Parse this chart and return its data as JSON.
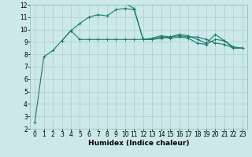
{
  "x": [
    0,
    1,
    2,
    3,
    4,
    5,
    6,
    7,
    8,
    9,
    10,
    11,
    12,
    13,
    14,
    15,
    16,
    17,
    18,
    19,
    20,
    21,
    22,
    23
  ],
  "line1": [
    2.5,
    7.8,
    8.3,
    9.1,
    9.9,
    9.2,
    9.2,
    9.2,
    9.2,
    9.2,
    9.2,
    9.2,
    9.2,
    9.2,
    9.4,
    9.3,
    9.4,
    9.3,
    8.9,
    8.8,
    9.2,
    9.1,
    8.6,
    8.5
  ],
  "line2": [
    null,
    null,
    null,
    9.1,
    9.9,
    10.5,
    11.0,
    11.2,
    11.1,
    11.6,
    11.7,
    11.6,
    9.2,
    9.3,
    9.5,
    9.4,
    9.6,
    9.5,
    9.2,
    8.9,
    9.6,
    9.1,
    8.5,
    8.5
  ],
  "line3": [
    null,
    null,
    null,
    null,
    null,
    null,
    null,
    null,
    null,
    null,
    12.1,
    11.7,
    9.2,
    9.2,
    9.3,
    9.4,
    9.5,
    9.4,
    9.4,
    9.2,
    8.9,
    8.8,
    8.5,
    8.5
  ],
  "bg_color": "#cce8e8",
  "grid_color": "#aacfcf",
  "line_color": "#1a7a6e",
  "xlabel": "Humidex (Indice chaleur)",
  "ylim": [
    2,
    12
  ],
  "xlim": [
    -0.5,
    23.5
  ],
  "yticks": [
    2,
    3,
    4,
    5,
    6,
    7,
    8,
    9,
    10,
    11,
    12
  ],
  "xticks": [
    0,
    1,
    2,
    3,
    4,
    5,
    6,
    7,
    8,
    9,
    10,
    11,
    12,
    13,
    14,
    15,
    16,
    17,
    18,
    19,
    20,
    21,
    22,
    23
  ],
  "marker": "+",
  "markersize": 3,
  "linewidth": 0.8,
  "xlabel_fontsize": 6.5,
  "tick_fontsize": 5.5
}
